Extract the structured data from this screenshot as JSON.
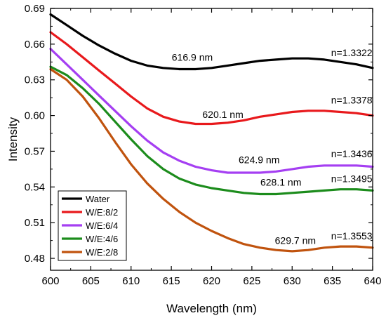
{
  "chart_data": {
    "type": "line",
    "xlabel": "Wavelength (nm)",
    "ylabel": "Intensity",
    "xlim": [
      600,
      640
    ],
    "ylim": [
      0.47,
      0.69
    ],
    "xticks": [
      600,
      605,
      610,
      615,
      620,
      625,
      630,
      635,
      640
    ],
    "xtick_labels": [
      "600",
      "605",
      "610",
      "615",
      "620",
      "625",
      "630",
      "635",
      "640"
    ],
    "yticks": [
      0.48,
      0.51,
      0.54,
      0.57,
      0.6,
      0.63,
      0.66,
      0.69
    ],
    "ytick_labels": [
      "0.48",
      "0.51",
      "0.54",
      "0.57",
      "0.60",
      "0.63",
      "0.66",
      "0.69"
    ],
    "grid": false,
    "legend_position": "bottom-left",
    "series": [
      {
        "name": "Water",
        "color": "#000000",
        "x": [
          600,
          602,
          604,
          606,
          608,
          610,
          612,
          614,
          616,
          618,
          620,
          622,
          624,
          626,
          628,
          630,
          632,
          634,
          636,
          638,
          640
        ],
        "y": [
          0.685,
          0.676,
          0.667,
          0.659,
          0.652,
          0.646,
          0.642,
          0.64,
          0.639,
          0.639,
          0.64,
          0.642,
          0.644,
          0.646,
          0.647,
          0.648,
          0.648,
          0.647,
          0.645,
          0.643,
          0.64
        ]
      },
      {
        "name": "W/E:8/2",
        "color": "#e8191c",
        "x": [
          600,
          602,
          604,
          606,
          608,
          610,
          612,
          614,
          616,
          618,
          620,
          622,
          624,
          626,
          628,
          630,
          632,
          634,
          636,
          638,
          640
        ],
        "y": [
          0.67,
          0.66,
          0.649,
          0.638,
          0.627,
          0.616,
          0.606,
          0.599,
          0.595,
          0.593,
          0.593,
          0.594,
          0.596,
          0.599,
          0.601,
          0.603,
          0.604,
          0.604,
          0.603,
          0.602,
          0.6
        ]
      },
      {
        "name": "W/E:6/4",
        "color": "#a53ff2",
        "x": [
          600,
          602,
          604,
          606,
          608,
          610,
          612,
          614,
          616,
          618,
          620,
          622,
          624,
          626,
          628,
          630,
          632,
          634,
          636,
          638,
          640
        ],
        "y": [
          0.656,
          0.643,
          0.63,
          0.617,
          0.604,
          0.591,
          0.579,
          0.569,
          0.562,
          0.557,
          0.554,
          0.552,
          0.552,
          0.552,
          0.553,
          0.555,
          0.557,
          0.558,
          0.558,
          0.558,
          0.557
        ]
      },
      {
        "name": "W/E:4/6",
        "color": "#1c8c1c",
        "x": [
          600,
          602,
          604,
          606,
          608,
          610,
          612,
          614,
          616,
          618,
          620,
          622,
          624,
          626,
          628,
          630,
          632,
          634,
          636,
          638,
          640
        ],
        "y": [
          0.641,
          0.634,
          0.623,
          0.61,
          0.595,
          0.58,
          0.566,
          0.555,
          0.547,
          0.542,
          0.539,
          0.537,
          0.535,
          0.534,
          0.534,
          0.535,
          0.536,
          0.537,
          0.538,
          0.538,
          0.537
        ]
      },
      {
        "name": "W/E:2/8",
        "color": "#c0530e",
        "x": [
          600,
          602,
          604,
          606,
          608,
          610,
          612,
          614,
          616,
          618,
          620,
          622,
          624,
          626,
          628,
          630,
          632,
          634,
          636,
          638,
          640
        ],
        "y": [
          0.639,
          0.63,
          0.616,
          0.598,
          0.578,
          0.559,
          0.543,
          0.53,
          0.519,
          0.51,
          0.503,
          0.497,
          0.492,
          0.489,
          0.487,
          0.486,
          0.487,
          0.489,
          0.49,
          0.49,
          0.489
        ]
      }
    ],
    "annotations": [
      {
        "text": "616.9 nm",
        "x": 617.6,
        "y": 0.646
      },
      {
        "text": "n=1.3322",
        "x": 637.4,
        "y": 0.65
      },
      {
        "text": "620.1 nm",
        "x": 621.4,
        "y": 0.598
      },
      {
        "text": "n=1.3378",
        "x": 637.4,
        "y": 0.61
      },
      {
        "text": "624.9 nm",
        "x": 625.9,
        "y": 0.56
      },
      {
        "text": "n=1.3436",
        "x": 637.4,
        "y": 0.565
      },
      {
        "text": "628.1 nm",
        "x": 628.6,
        "y": 0.541
      },
      {
        "text": "n=1.3495",
        "x": 637.4,
        "y": 0.544
      },
      {
        "text": "629.7 nm",
        "x": 630.4,
        "y": 0.492
      },
      {
        "text": "n=1.3553",
        "x": 637.4,
        "y": 0.496
      }
    ]
  }
}
